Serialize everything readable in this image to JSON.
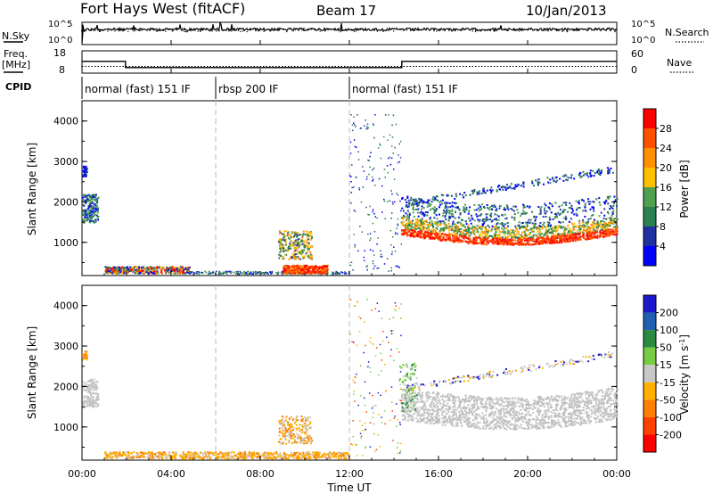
{
  "header": {
    "station": "Fort Hays West (fitACF)",
    "beam": "Beam 17",
    "date": "10/Jan/2013"
  },
  "noise_panel": {
    "left_label": "N.Sky",
    "right_label": "N.Search",
    "ticks_left": [
      "10^5",
      "10^0"
    ],
    "ticks_right": [
      "10^5",
      "10^0"
    ]
  },
  "freq_panel": {
    "left_label_1": "Freq.",
    "left_label_2": "[MHz]",
    "right_label": "Nave",
    "ticks_left": [
      "18",
      "8"
    ],
    "ticks_right": [
      "60",
      "0"
    ],
    "freq_steps": [
      {
        "start_hr": 0.0,
        "end_hr": 1.95,
        "mhz": 13.6
      },
      {
        "start_hr": 1.95,
        "end_hr": 12.0,
        "mhz": 10.1
      },
      {
        "start_hr": 12.0,
        "end_hr": 14.35,
        "mhz": 10.1
      },
      {
        "start_hr": 14.35,
        "end_hr": 24.0,
        "mhz": 13.6
      }
    ],
    "nave_level": 18
  },
  "cpid": {
    "label": "CPID",
    "segments": [
      {
        "start_hr": 0,
        "end_hr": 6,
        "text": "normal (fast) 151 IF"
      },
      {
        "start_hr": 6,
        "end_hr": 12,
        "text": "rbsp 200 IF"
      },
      {
        "start_hr": 12,
        "end_hr": 24,
        "text": "normal (fast) 151 IF"
      }
    ]
  },
  "chart_data": [
    {
      "type": "heatmap",
      "ylabel": "Slant Range [km]",
      "ylim": [
        180,
        4500
      ],
      "yticks": [
        "1000",
        "2000",
        "3000",
        "4000"
      ],
      "xlim": [
        0,
        24
      ],
      "colorbar_label": "Power [dB]",
      "colorbar_ticks": [
        "28",
        "24",
        "20",
        "16",
        "12",
        "8",
        "4"
      ],
      "colorbar_colors": [
        "#ff0000",
        "#ff5000",
        "#ff9000",
        "#ffc000",
        "#50a050",
        "#2a8050",
        "#2030a0",
        "#0000ff"
      ]
    },
    {
      "type": "heatmap",
      "ylabel": "Slant Range [km]",
      "ylim": [
        180,
        4500
      ],
      "yticks": [
        "1000",
        "2000",
        "3000",
        "4000"
      ],
      "xlim": [
        0,
        24
      ],
      "colorbar_label": "Velocity [m s^-1]",
      "colorbar_ticks": [
        "200",
        "100",
        "50",
        "15",
        "-15",
        "-50",
        "-100",
        "-200"
      ],
      "colorbar_colors": [
        "#1a1acc",
        "#2060b0",
        "#2a8a40",
        "#77cc44",
        "#c8c8c8",
        "#ffb000",
        "#ff8000",
        "#ff4000",
        "#ff0000"
      ]
    }
  ],
  "x_axis": {
    "ticks": [
      "00:00",
      "04:00",
      "08:00",
      "12:00",
      "16:00",
      "20:00",
      "00:00"
    ],
    "label": "Time UT"
  }
}
